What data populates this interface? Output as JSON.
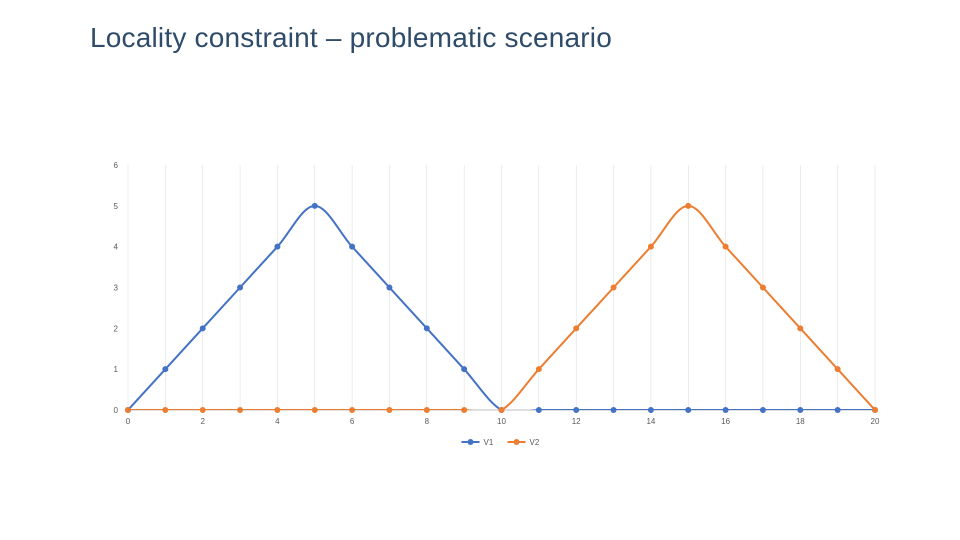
{
  "title": "Locality constraint – problematic scenario",
  "title_color": "#2f4b6a",
  "title_fontsize": 28,
  "chart": {
    "type": "line",
    "background_color": "#ffffff",
    "gridline_color": "#d9d9d9",
    "axis_line_color": "#bfbfbf",
    "tick_label_color": "#595959",
    "tick_label_fontsize": 8,
    "x": [
      0,
      1,
      2,
      3,
      4,
      5,
      6,
      7,
      8,
      9,
      10,
      11,
      12,
      13,
      14,
      15,
      16,
      17,
      18,
      19,
      20
    ],
    "xlim": [
      0,
      20
    ],
    "ylim": [
      0,
      6
    ],
    "xtick_step": 2,
    "ytick_step": 1,
    "xticks": [
      0,
      2,
      4,
      6,
      8,
      10,
      12,
      14,
      16,
      18,
      20
    ],
    "yticks": [
      0,
      1,
      2,
      3,
      4,
      5,
      6
    ],
    "marker_radius": 3,
    "line_width": 2,
    "smooth": true,
    "series": [
      {
        "name": "V1",
        "label": "V1",
        "color": "#4472c4",
        "marker_color": "#4472c4",
        "y": [
          0,
          1,
          2,
          3,
          4,
          5,
          4,
          3,
          2,
          1,
          0,
          0,
          0,
          0,
          0,
          0,
          0,
          0,
          0,
          0,
          0
        ]
      },
      {
        "name": "V2",
        "label": "V2",
        "color": "#ed7d31",
        "marker_color": "#ed7d31",
        "y": [
          0,
          0,
          0,
          0,
          0,
          0,
          0,
          0,
          0,
          0,
          0,
          1,
          2,
          3,
          4,
          5,
          4,
          3,
          2,
          1,
          0
        ]
      }
    ],
    "legend": {
      "position": "bottom-center",
      "swatch_line_length": 18,
      "swatch_marker_radius": 3,
      "label_fontsize": 8
    }
  }
}
